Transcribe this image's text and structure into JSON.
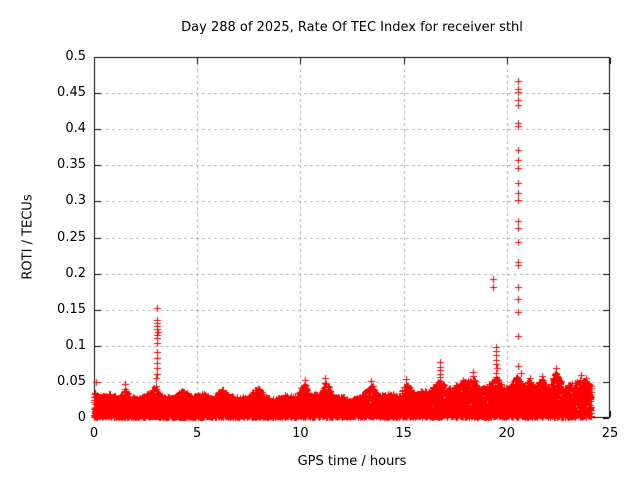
{
  "accent_color": "#ff0000",
  "chart_data": {
    "type": "scatter",
    "title": "Day 288 of 2025, Rate Of TEC Index for receiver sthl",
    "xlabel": "GPS time / hours",
    "ylabel": "ROTI / TECUs",
    "xlim": [
      0,
      25
    ],
    "ylim": [
      0,
      0.5
    ],
    "xticks": [
      0,
      5,
      10,
      15,
      20,
      25
    ],
    "xtick_labels": [
      "0",
      "5",
      "10",
      "15",
      "20",
      "25"
    ],
    "yticks": [
      0,
      0.05,
      0.1,
      0.15,
      0.2,
      0.25,
      0.3,
      0.35,
      0.4,
      0.45,
      0.5
    ],
    "ytick_labels": [
      "0",
      "0.05",
      "0.1",
      "0.15",
      "0.2",
      "0.25",
      "0.3",
      "0.35",
      "0.4",
      "0.45",
      "0.5"
    ],
    "grid": true,
    "grid_style": "dashed",
    "grid_color": "#b0b0b0",
    "frame_color": "#000000",
    "legend_position": "none",
    "marker": "plus",
    "marker_color": "#ff0000",
    "outlier_points": [
      [
        0.12,
        0.05
      ],
      [
        1.5,
        0.047
      ],
      [
        3.02,
        0.055
      ],
      [
        3.05,
        0.152
      ],
      [
        3.05,
        0.136
      ],
      [
        3.07,
        0.131
      ],
      [
        3.03,
        0.127
      ],
      [
        3.05,
        0.123
      ],
      [
        3.08,
        0.119
      ],
      [
        3.03,
        0.115
      ],
      [
        3.06,
        0.111
      ],
      [
        3.05,
        0.104
      ],
      [
        3.05,
        0.091
      ],
      [
        3.04,
        0.083
      ],
      [
        3.05,
        0.076
      ],
      [
        3.05,
        0.069
      ],
      [
        3.06,
        0.061
      ],
      [
        10.2,
        0.053
      ],
      [
        11.2,
        0.056
      ],
      [
        13.4,
        0.051
      ],
      [
        15.1,
        0.054
      ],
      [
        16.76,
        0.077
      ],
      [
        16.76,
        0.071
      ],
      [
        16.76,
        0.066
      ],
      [
        16.78,
        0.061
      ],
      [
        16.74,
        0.057
      ],
      [
        17.9,
        0.052
      ],
      [
        18.36,
        0.064
      ],
      [
        18.36,
        0.058
      ],
      [
        19.33,
        0.192
      ],
      [
        19.33,
        0.181
      ],
      [
        19.5,
        0.099
      ],
      [
        19.5,
        0.093
      ],
      [
        19.5,
        0.087
      ],
      [
        19.5,
        0.081
      ],
      [
        19.5,
        0.075
      ],
      [
        19.52,
        0.069
      ],
      [
        19.5,
        0.063
      ],
      [
        19.5,
        0.057
      ],
      [
        20.52,
        0.467
      ],
      [
        20.52,
        0.456
      ],
      [
        20.53,
        0.451
      ],
      [
        20.52,
        0.44
      ],
      [
        20.53,
        0.434
      ],
      [
        20.52,
        0.408
      ],
      [
        20.55,
        0.404
      ],
      [
        20.52,
        0.371
      ],
      [
        20.52,
        0.357
      ],
      [
        20.52,
        0.346
      ],
      [
        20.52,
        0.325
      ],
      [
        20.52,
        0.311
      ],
      [
        20.52,
        0.302
      ],
      [
        20.52,
        0.273
      ],
      [
        20.52,
        0.263
      ],
      [
        20.52,
        0.244
      ],
      [
        20.55,
        0.216
      ],
      [
        20.53,
        0.212
      ],
      [
        20.56,
        0.181
      ],
      [
        20.56,
        0.165
      ],
      [
        20.56,
        0.147
      ],
      [
        20.56,
        0.113
      ],
      [
        20.54,
        0.072
      ],
      [
        20.7,
        0.062
      ],
      [
        21.1,
        0.056
      ],
      [
        21.7,
        0.058
      ],
      [
        22.38,
        0.069
      ],
      [
        22.4,
        0.063
      ],
      [
        23.6,
        0.059
      ],
      [
        23.85,
        0.055
      ]
    ],
    "baseline_band": {
      "description": "dense noise band of ROTI values hugging zero across the whole day",
      "x_range": [
        0,
        24.1
      ],
      "y_min": 0.0015,
      "envelope": [
        [
          0.0,
          0.036
        ],
        [
          0.3,
          0.03
        ],
        [
          0.8,
          0.034
        ],
        [
          1.2,
          0.028
        ],
        [
          1.5,
          0.042
        ],
        [
          1.8,
          0.03
        ],
        [
          2.2,
          0.028
        ],
        [
          2.6,
          0.035
        ],
        [
          3.0,
          0.045
        ],
        [
          3.3,
          0.03
        ],
        [
          3.8,
          0.03
        ],
        [
          4.3,
          0.038
        ],
        [
          4.8,
          0.03
        ],
        [
          5.3,
          0.035
        ],
        [
          5.8,
          0.028
        ],
        [
          6.2,
          0.042
        ],
        [
          6.6,
          0.032
        ],
        [
          7.0,
          0.028
        ],
        [
          7.5,
          0.03
        ],
        [
          7.95,
          0.045
        ],
        [
          8.3,
          0.03
        ],
        [
          8.8,
          0.026
        ],
        [
          9.3,
          0.032
        ],
        [
          9.8,
          0.03
        ],
        [
          10.2,
          0.05
        ],
        [
          10.5,
          0.032
        ],
        [
          11.0,
          0.035
        ],
        [
          11.2,
          0.052
        ],
        [
          11.6,
          0.03
        ],
        [
          12.0,
          0.03
        ],
        [
          12.5,
          0.026
        ],
        [
          13.0,
          0.032
        ],
        [
          13.4,
          0.048
        ],
        [
          13.8,
          0.032
        ],
        [
          14.3,
          0.035
        ],
        [
          14.8,
          0.03
        ],
        [
          15.1,
          0.05
        ],
        [
          15.5,
          0.035
        ],
        [
          16.0,
          0.038
        ],
        [
          16.4,
          0.042
        ],
        [
          16.75,
          0.055
        ],
        [
          17.1,
          0.04
        ],
        [
          17.5,
          0.045
        ],
        [
          17.9,
          0.05
        ],
        [
          18.35,
          0.055
        ],
        [
          18.7,
          0.042
        ],
        [
          19.1,
          0.045
        ],
        [
          19.5,
          0.058
        ],
        [
          19.8,
          0.045
        ],
        [
          20.1,
          0.042
        ],
        [
          20.45,
          0.06
        ],
        [
          20.8,
          0.048
        ],
        [
          21.1,
          0.052
        ],
        [
          21.4,
          0.045
        ],
        [
          21.7,
          0.055
        ],
        [
          22.0,
          0.042
        ],
        [
          22.4,
          0.065
        ],
        [
          22.8,
          0.042
        ],
        [
          23.2,
          0.05
        ],
        [
          23.6,
          0.055
        ],
        [
          23.9,
          0.05
        ],
        [
          24.1,
          0.045
        ]
      ],
      "point_count": 9000,
      "seed": 288
    }
  }
}
